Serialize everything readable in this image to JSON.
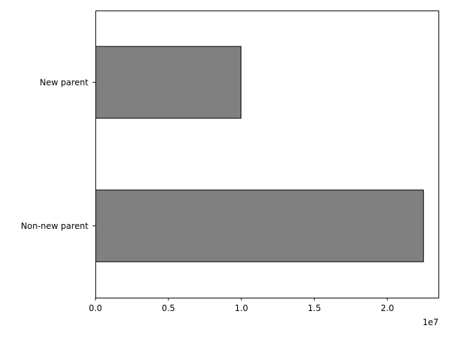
{
  "chart_data": {
    "type": "bar",
    "orientation": "horizontal",
    "categories": [
      "New parent",
      "Non-new parent"
    ],
    "values": [
      9950000,
      22450000
    ],
    "xlim": [
      0,
      23500000
    ],
    "xticks": [
      0,
      5000000,
      10000000,
      15000000,
      20000000
    ],
    "xtick_labels": [
      "0.0",
      "0.5",
      "1.0",
      "1.5",
      "2.0"
    ],
    "offset_label": "1e7",
    "title": "",
    "xlabel": "",
    "ylabel": "",
    "grid": false,
    "bar_color": "#808080",
    "edge_color": "#000000"
  }
}
